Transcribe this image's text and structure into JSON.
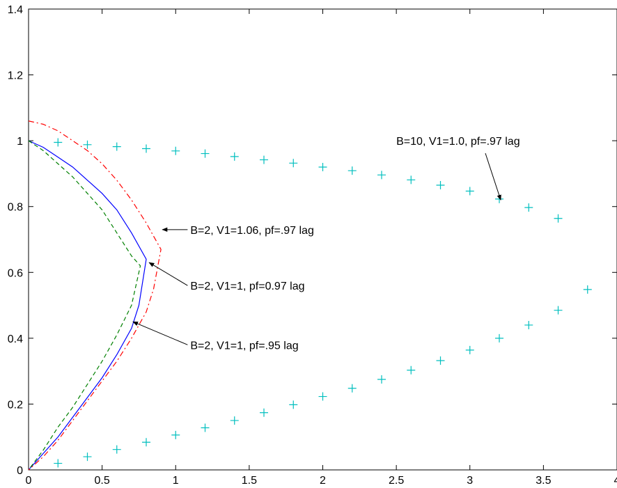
{
  "chart_data": {
    "type": "line",
    "xlim": [
      0,
      4
    ],
    "ylim": [
      0,
      1.4
    ],
    "xticks": [
      0,
      0.5,
      1,
      1.5,
      2,
      2.5,
      3,
      3.5,
      4
    ],
    "yticks": [
      0,
      0.2,
      0.4,
      0.6,
      0.8,
      1.0,
      1.2,
      1.4
    ],
    "xtick_labels": [
      "0",
      "0.5",
      "1",
      "1.5",
      "2",
      "2.5",
      "3",
      "3.5",
      "4"
    ],
    "ytick_labels": [
      "0",
      "0.2",
      "0.4",
      "0.6",
      "0.8",
      "1",
      "1.2",
      "1.4"
    ],
    "grid": false,
    "series": [
      {
        "color": "#0000ff",
        "style": "solid",
        "x": [
          0,
          0.05,
          0.1,
          0.2,
          0.3,
          0.4,
          0.5,
          0.6,
          0.7,
          0.7,
          0.8
        ],
        "y": [
          1.0,
          0.99,
          0.98,
          0.95,
          0.92,
          0.88,
          0.84,
          0.79,
          0.72,
          0.72,
          0.64
        ],
        "x2": [
          0.8,
          0.75,
          0.7,
          0.6,
          0.5,
          0.4,
          0.3,
          0.2,
          0.1,
          0
        ],
        "y2": [
          0.64,
          0.5,
          0.43,
          0.35,
          0.28,
          0.22,
          0.16,
          0.1,
          0.05,
          0
        ]
      },
      {
        "color": "#008000",
        "style": "dashed",
        "x": [
          0,
          0.1,
          0.2,
          0.3,
          0.4,
          0.5,
          0.6,
          0.7,
          0.76
        ],
        "y": [
          1.0,
          0.97,
          0.93,
          0.89,
          0.84,
          0.79,
          0.72,
          0.65,
          0.62
        ],
        "x2": [
          0.76,
          0.7,
          0.6,
          0.5,
          0.4,
          0.3,
          0.2,
          0.1,
          0
        ],
        "y2": [
          0.62,
          0.5,
          0.41,
          0.33,
          0.26,
          0.19,
          0.13,
          0.06,
          0
        ]
      },
      {
        "color": "#ff0000",
        "style": "dashdot",
        "x": [
          0,
          0.1,
          0.2,
          0.3,
          0.4,
          0.5,
          0.6,
          0.7,
          0.8,
          0.85,
          0.9
        ],
        "y": [
          1.06,
          1.05,
          1.03,
          1.0,
          0.97,
          0.93,
          0.88,
          0.82,
          0.75,
          0.71,
          0.67
        ],
        "x2": [
          0.9,
          0.85,
          0.8,
          0.7,
          0.6,
          0.5,
          0.4,
          0.3,
          0.2,
          0.1,
          0
        ],
        "y2": [
          0.67,
          0.55,
          0.48,
          0.4,
          0.33,
          0.27,
          0.21,
          0.15,
          0.09,
          0.04,
          0
        ]
      },
      {
        "color": "#00bfbf",
        "style": "plus-markers",
        "x": [
          0.2,
          0.4,
          0.6,
          0.8,
          1.0,
          1.2,
          1.4,
          1.6,
          1.8,
          2.0,
          2.2,
          2.4,
          2.6,
          2.8,
          3.0,
          3.2,
          3.4,
          3.6
        ],
        "y": [
          0.995,
          0.988,
          0.982,
          0.976,
          0.969,
          0.961,
          0.952,
          0.942,
          0.932,
          0.92,
          0.909,
          0.896,
          0.881,
          0.865,
          0.847,
          0.823,
          0.797,
          0.764
        ]
      },
      {
        "color": "#00bfbf",
        "style": "plus-markers",
        "x": [
          0.2,
          0.4,
          0.6,
          0.8,
          1.0,
          1.2,
          1.4,
          1.6,
          1.8,
          2.0,
          2.2,
          2.4,
          2.6,
          2.8,
          3.0,
          3.2,
          3.4,
          3.6,
          3.8
        ],
        "y": [
          0.02,
          0.04,
          0.062,
          0.084,
          0.106,
          0.128,
          0.15,
          0.174,
          0.198,
          0.223,
          0.248,
          0.275,
          0.303,
          0.332,
          0.364,
          0.4,
          0.44,
          0.485,
          0.548
        ]
      }
    ],
    "annotations": [
      {
        "text": "B=10, V1=1.0, pf=.97 lag",
        "point": [
          3.2,
          0.82
        ],
        "text_pos": [
          2.5,
          1.0
        ]
      },
      {
        "text": "B=2, V1=1.06, pf=.97 lag",
        "point": [
          0.9,
          0.73
        ],
        "text_pos": [
          1.1,
          0.73
        ]
      },
      {
        "text": "B=2, V1=1, pf=0.97 lag",
        "point": [
          0.81,
          0.63
        ],
        "text_pos": [
          1.1,
          0.56
        ]
      },
      {
        "text": "B=2, V1=1, pf=.95 lag",
        "point": [
          0.7,
          0.45
        ],
        "text_pos": [
          1.1,
          0.38
        ]
      }
    ]
  }
}
